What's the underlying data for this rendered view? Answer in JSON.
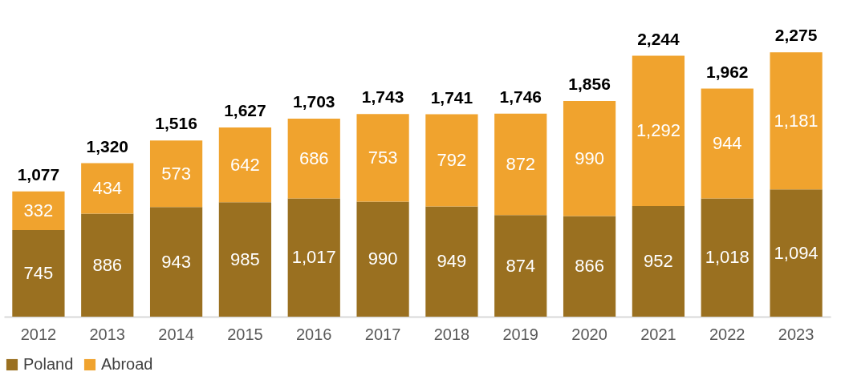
{
  "chart_data": {
    "type": "bar",
    "stacked": true,
    "legend": "bottom",
    "categories": [
      "2012",
      "2013",
      "2014",
      "2015",
      "2016",
      "2017",
      "2018",
      "2019",
      "2020",
      "2021",
      "2022",
      "2023"
    ],
    "series": [
      {
        "name": "Poland",
        "color": "#9a7020",
        "values": [
          745,
          886,
          943,
          985,
          1017,
          990,
          949,
          874,
          866,
          952,
          1018,
          1094
        ],
        "value_labels": [
          "745",
          "886",
          "943",
          "985",
          "1,017",
          "990",
          "949",
          "874",
          "866",
          "952",
          "1,018",
          "1,094"
        ]
      },
      {
        "name": "Abroad",
        "color": "#f0a32e",
        "values": [
          332,
          434,
          573,
          642,
          686,
          753,
          792,
          872,
          990,
          1292,
          944,
          1181
        ],
        "value_labels": [
          "332",
          "434",
          "573",
          "642",
          "686",
          "753",
          "792",
          "872",
          "990",
          "1,292",
          "944",
          "1,181"
        ]
      }
    ],
    "totals": [
      "1,077",
      "1,320",
      "1,516",
      "1,627",
      "1,703",
      "1,743",
      "1,741",
      "1,746",
      "1,856",
      "2,244",
      "1,962",
      "2,275"
    ]
  }
}
